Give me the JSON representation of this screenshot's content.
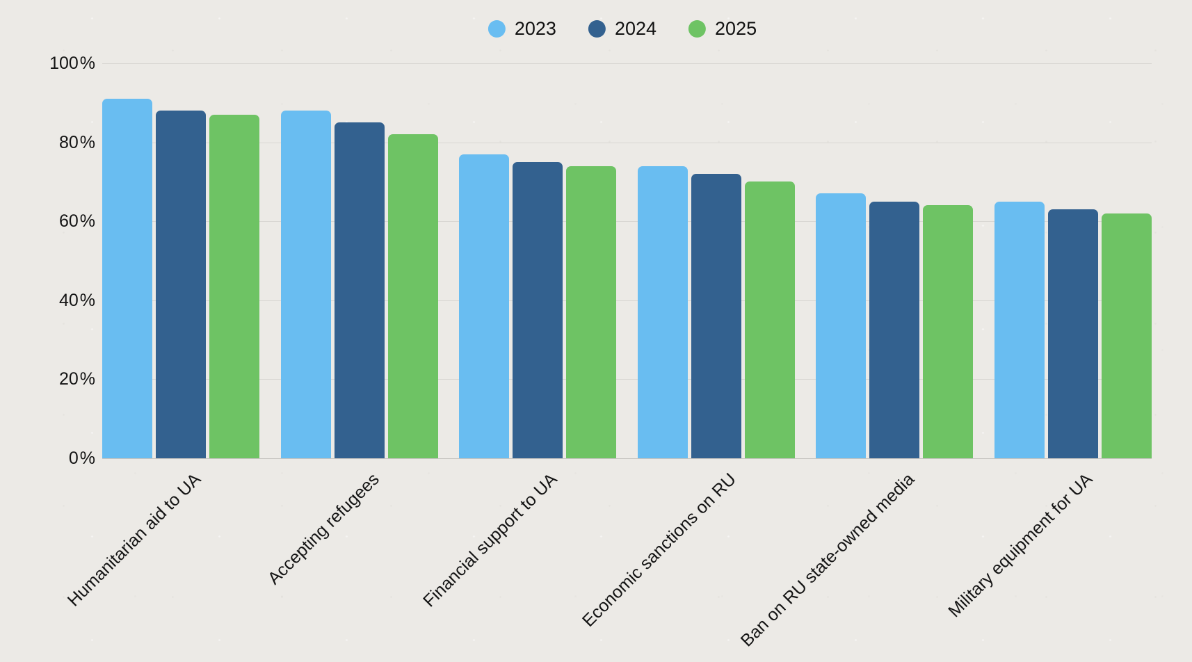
{
  "chart_data": {
    "type": "bar",
    "title": "",
    "categories": [
      "Humanitarian aid to UA",
      "Accepting refugees",
      "Financial support to UA",
      "Economic sanctions on RU",
      "Ban on RU state-owned media",
      "Military equipment for UA"
    ],
    "series": [
      {
        "name": "2023",
        "color": "#69bdf1",
        "values": [
          91,
          88,
          77,
          74,
          67,
          65
        ]
      },
      {
        "name": "2024",
        "color": "#33618f",
        "values": [
          88,
          85,
          75,
          72,
          65,
          63
        ]
      },
      {
        "name": "2025",
        "color": "#6ec364",
        "values": [
          87,
          82,
          74,
          70,
          64,
          62
        ]
      }
    ],
    "xlabel": "",
    "ylabel": "",
    "ylim": [
      0,
      100
    ],
    "yticks": [
      0,
      20,
      40,
      60,
      80,
      100
    ],
    "ytick_labels": [
      "0 %",
      "20 %",
      "40 %",
      "60 %",
      "80 %",
      "100 %"
    ],
    "grid": true,
    "legend_position": "top-center"
  },
  "colors": {
    "background": "#eceae6",
    "gridline": "#d8d6d2",
    "baseline": "#c6c4c0",
    "text": "#141414"
  }
}
